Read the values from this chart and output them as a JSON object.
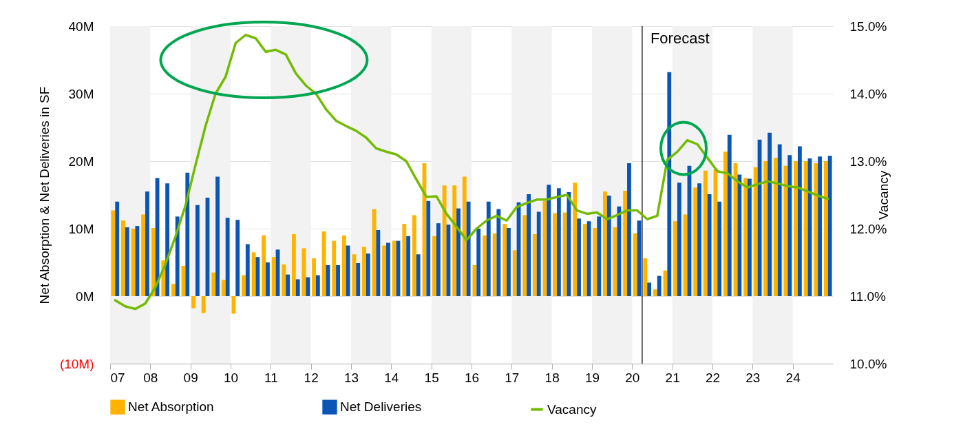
{
  "chart_data": {
    "type": "bar",
    "ylabel": "Net Absorption & Net Deliveries in SF",
    "y2label": "Vacancy",
    "x": [
      2007.125,
      2007.375,
      2007.625,
      2007.875,
      2008.125,
      2008.375,
      2008.625,
      2008.875,
      2009.125,
      2009.375,
      2009.625,
      2009.875,
      2010.125,
      2010.375,
      2010.625,
      2010.875,
      2011.125,
      2011.375,
      2011.625,
      2011.875,
      2012.125,
      2012.375,
      2012.625,
      2012.875,
      2013.125,
      2013.375,
      2013.625,
      2013.875,
      2014.125,
      2014.375,
      2014.625,
      2014.875,
      2015.125,
      2015.375,
      2015.625,
      2015.875,
      2016.125,
      2016.375,
      2016.625,
      2016.875,
      2017.125,
      2017.375,
      2017.625,
      2017.875,
      2018.125,
      2018.375,
      2018.625,
      2018.875,
      2019.125,
      2019.375,
      2019.625,
      2019.875,
      2020.125,
      2020.375,
      2020.625,
      2020.875,
      2021.125,
      2021.375,
      2021.625,
      2021.875,
      2022.125,
      2022.375,
      2022.625,
      2022.875,
      2023.125,
      2023.375,
      2023.625,
      2023.875,
      2024.125,
      2024.375,
      2024.625,
      2024.875
    ],
    "series": [
      {
        "name": "Net Absorption",
        "color": "#ffb300",
        "values": [
          12.7,
          11.2,
          10.0,
          12.1,
          10.1,
          5.3,
          1.8,
          4.5,
          -1.8,
          -2.5,
          3.5,
          2.4,
          -2.6,
          3.1,
          6.5,
          9.0,
          5.8,
          4.7,
          9.2,
          7.1,
          5.6,
          9.6,
          8.2,
          9.0,
          6.2,
          7.3,
          12.9,
          7.5,
          8.2,
          10.7,
          12.0,
          19.7,
          8.9,
          16.4,
          16.4,
          17.7,
          4.6,
          9.0,
          9.3,
          10.7,
          6.8,
          12.0,
          9.2,
          14.1,
          12.3,
          12.4,
          16.8,
          10.7,
          10.1,
          15.5,
          10.2,
          15.6,
          9.3,
          5.6,
          1.0,
          3.8,
          11.1,
          12.1,
          16.1,
          18.6,
          18.8,
          21.4,
          19.7,
          17.5,
          19.1,
          20.0,
          20.5,
          19.3,
          20.0,
          20.0,
          19.7,
          20.0
        ]
      },
      {
        "name": "Net Deliveries",
        "color": "#0a55b5",
        "values": [
          14.0,
          10.2,
          10.4,
          15.5,
          17.5,
          16.7,
          11.8,
          18.3,
          13.5,
          14.6,
          17.7,
          11.6,
          11.3,
          7.7,
          5.8,
          5.0,
          6.9,
          3.2,
          2.5,
          2.8,
          3.1,
          4.6,
          4.6,
          7.5,
          4.9,
          6.3,
          9.8,
          7.9,
          8.2,
          8.9,
          6.2,
          14.1,
          10.8,
          10.6,
          13.0,
          14.0,
          10.0,
          14.0,
          12.9,
          10.1,
          13.9,
          15.1,
          12.5,
          16.5,
          16.0,
          15.4,
          11.5,
          11.1,
          11.8,
          14.9,
          13.3,
          19.7,
          11.2,
          2.0,
          3.0,
          33.2,
          16.8,
          19.3,
          16.7,
          15.1,
          14.0,
          23.9,
          18.0,
          17.4,
          23.2,
          24.2,
          22.5,
          20.9,
          22.2,
          20.4,
          20.7,
          20.8
        ]
      },
      {
        "name": "Vacancy",
        "type": "line",
        "axis": "y2",
        "color": "#72bb00",
        "values": [
          10.94,
          10.85,
          10.81,
          10.89,
          11.13,
          11.47,
          11.88,
          12.34,
          12.94,
          13.52,
          14.0,
          14.25,
          14.75,
          14.87,
          14.82,
          14.62,
          14.65,
          14.58,
          14.3,
          14.12,
          14.0,
          13.77,
          13.6,
          13.52,
          13.45,
          13.35,
          13.19,
          13.14,
          13.1,
          13.0,
          12.73,
          12.47,
          12.48,
          12.22,
          12.03,
          11.83,
          12.0,
          12.12,
          12.19,
          12.12,
          12.32,
          12.38,
          12.43,
          12.43,
          12.47,
          12.5,
          12.27,
          12.22,
          12.24,
          12.14,
          12.2,
          12.27,
          12.27,
          12.14,
          12.19,
          13.02,
          13.14,
          13.31,
          13.25,
          13.05,
          12.85,
          12.82,
          12.7,
          12.61,
          12.66,
          12.7,
          12.67,
          12.63,
          12.61,
          12.55,
          12.49,
          12.44
        ]
      }
    ],
    "xlim": [
      2007,
      2025
    ],
    "xticks": [
      {
        "value": 2007,
        "label": "07"
      },
      {
        "value": 2008,
        "label": "08"
      },
      {
        "value": 2009,
        "label": "09"
      },
      {
        "value": 2010,
        "label": "10"
      },
      {
        "value": 2011,
        "label": "11"
      },
      {
        "value": 2012,
        "label": "12"
      },
      {
        "value": 2013,
        "label": "13"
      },
      {
        "value": 2014,
        "label": "14"
      },
      {
        "value": 2015,
        "label": "15"
      },
      {
        "value": 2016,
        "label": "16"
      },
      {
        "value": 2017,
        "label": "17"
      },
      {
        "value": 2018,
        "label": "18"
      },
      {
        "value": 2019,
        "label": "19"
      },
      {
        "value": 2020,
        "label": "20"
      },
      {
        "value": 2021,
        "label": "21"
      },
      {
        "value": 2022,
        "label": "22"
      },
      {
        "value": 2023,
        "label": "23"
      },
      {
        "value": 2024,
        "label": "24"
      }
    ],
    "ylim": [
      -10,
      40
    ],
    "yticks": [
      {
        "value": -10,
        "label": "(10M)"
      },
      {
        "value": 0,
        "label": "0M"
      },
      {
        "value": 10,
        "label": "10M"
      },
      {
        "value": 20,
        "label": "20M"
      },
      {
        "value": 30,
        "label": "30M"
      },
      {
        "value": 40,
        "label": "40M"
      }
    ],
    "y2lim": [
      10,
      15
    ],
    "y2ticks": [
      {
        "value": 10,
        "label": "10.0%"
      },
      {
        "value": 11,
        "label": "11.0%"
      },
      {
        "value": 12,
        "label": "12.0%"
      },
      {
        "value": 13,
        "label": "13.0%"
      },
      {
        "value": 14,
        "label": "14.0%"
      },
      {
        "value": 15,
        "label": "15.0%"
      }
    ],
    "bands": [
      {
        "axis": "x",
        "from": 2007,
        "to": 2008,
        "color": "#f2f2f2"
      },
      {
        "axis": "x",
        "from": 2009,
        "to": 2010,
        "color": "#f2f2f2"
      },
      {
        "axis": "x",
        "from": 2011,
        "to": 2012,
        "color": "#f2f2f2"
      },
      {
        "axis": "x",
        "from": 2013,
        "to": 2014,
        "color": "#f2f2f2"
      },
      {
        "axis": "x",
        "from": 2015,
        "to": 2016,
        "color": "#f2f2f2"
      },
      {
        "axis": "x",
        "from": 2017,
        "to": 2018,
        "color": "#f2f2f2"
      },
      {
        "axis": "x",
        "from": 2019,
        "to": 2020,
        "color": "#f2f2f2"
      },
      {
        "axis": "x",
        "from": 2021,
        "to": 2022,
        "color": "#f2f2f2"
      },
      {
        "axis": "x",
        "from": 2023,
        "to": 2024,
        "color": "#f2f2f2"
      }
    ],
    "ref_lines": [
      {
        "axis": "x",
        "value": 2020.25,
        "label": "Forecast",
        "color": "#000000"
      }
    ],
    "grid": "y",
    "legend": "bottom"
  }
}
